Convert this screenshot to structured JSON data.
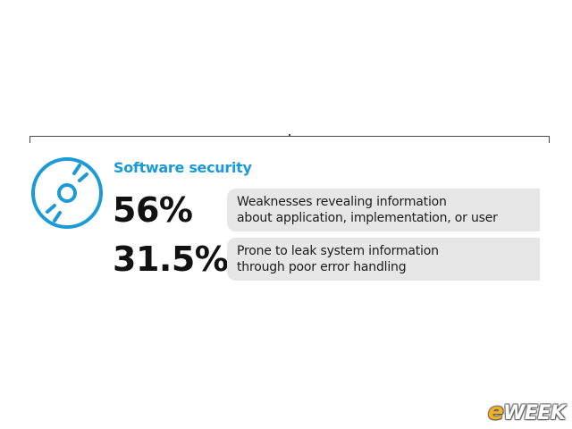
{
  "section": {
    "title": "Software security",
    "icon": "disc-icon",
    "accent_color": "#1a9ad6"
  },
  "stats": [
    {
      "value": "56%",
      "lines": [
        "Weaknesses revealing information",
        "about application, implementation, or user"
      ]
    },
    {
      "value": "31.5%",
      "lines": [
        "Prone to leak system information",
        "through poor error handling"
      ]
    }
  ],
  "watermark": {
    "logo_text": "eWEEK"
  }
}
